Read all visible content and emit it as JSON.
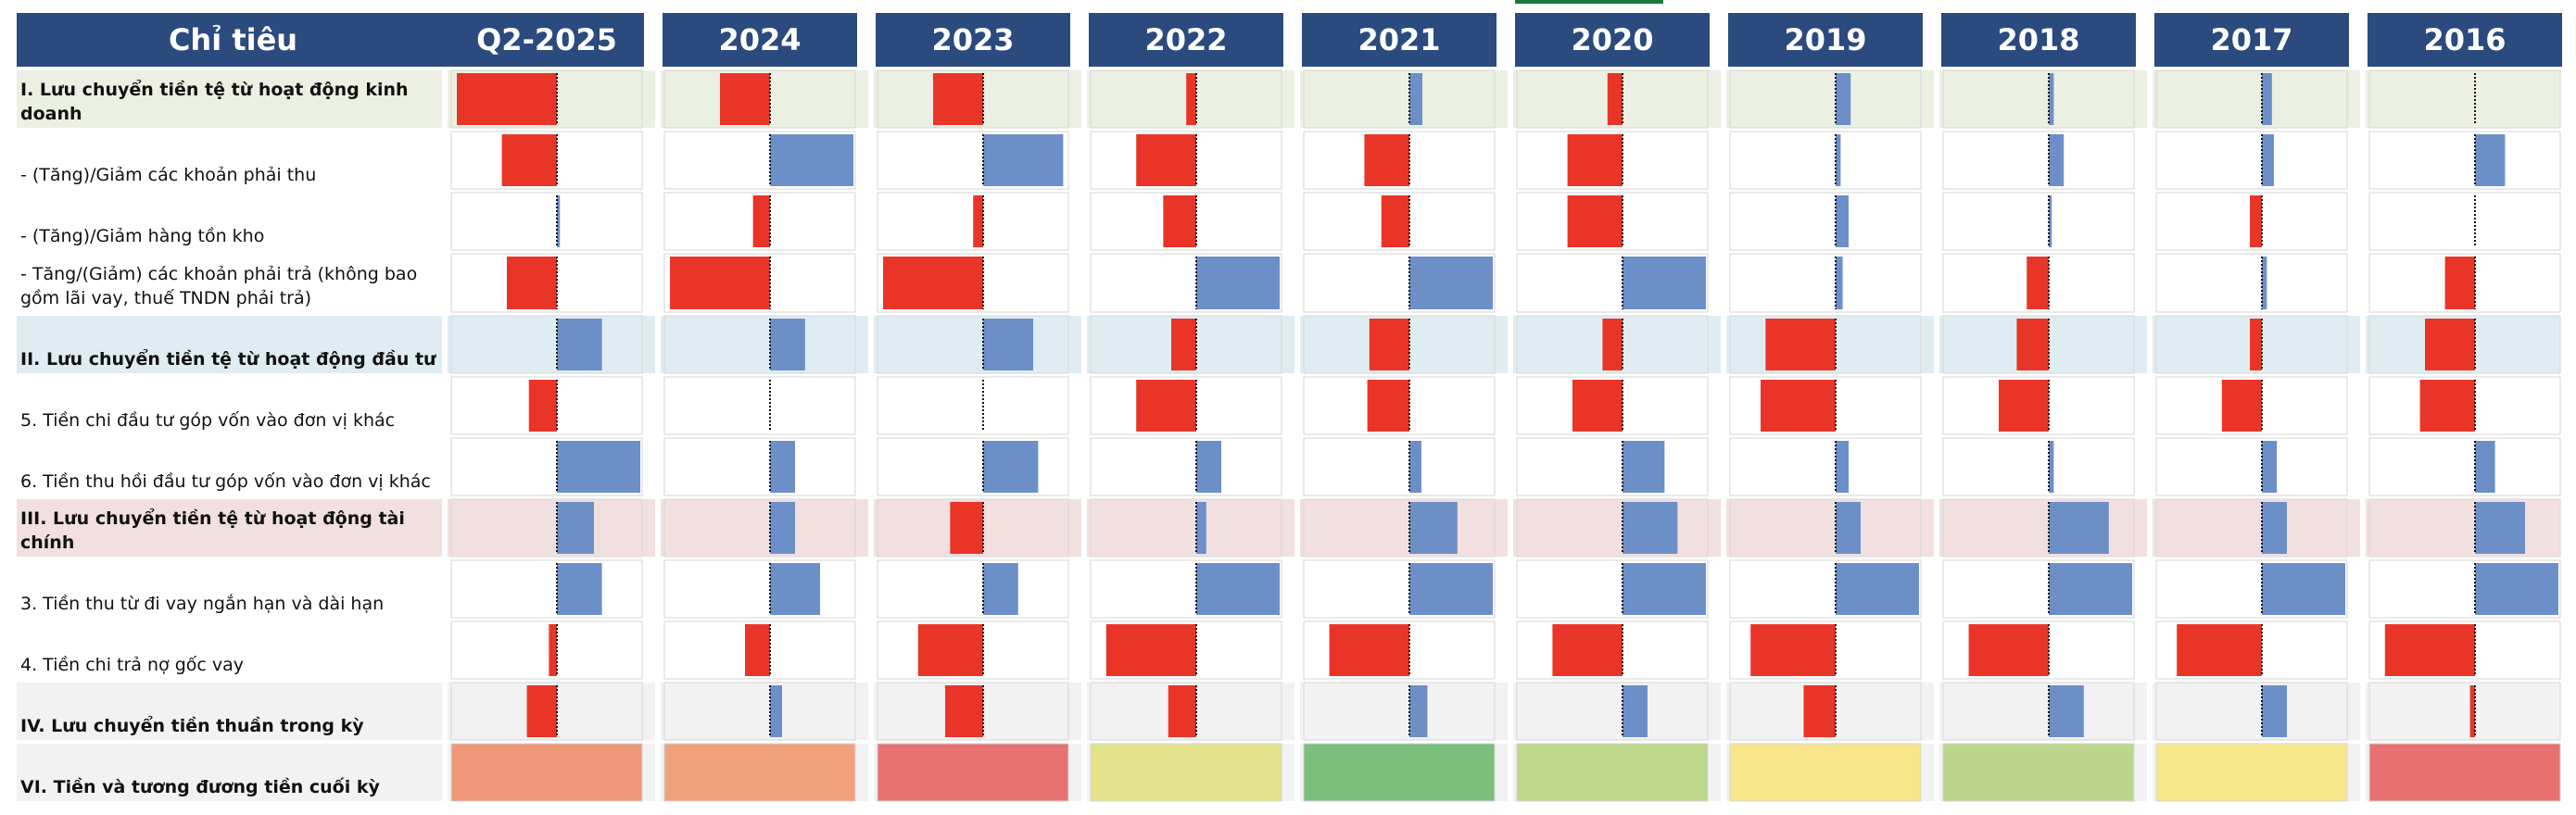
{
  "header": {
    "label_column": "Chỉ tiêu"
  },
  "chart_data": {
    "type": "bar",
    "orientation": "horizontal",
    "years": [
      "Q2-2025",
      "2024",
      "2023",
      "2022",
      "2021",
      "2020",
      "2019",
      "2018",
      "2017",
      "2016"
    ],
    "rows": [
      {
        "label": "I. Lưu chuyển tiền tệ từ hoạt động kinh doanh",
        "kind": "section",
        "band": "#ebf0e2",
        "values": [
          -1.0,
          -0.5,
          -0.5,
          -0.1,
          0.13,
          -0.15,
          0.15,
          0.05,
          0.1,
          0.0
        ]
      },
      {
        "label": "- (Tăng)/Giảm các khoản phải thu",
        "kind": "item",
        "band": "#ffffff",
        "values": [
          -0.55,
          0.9,
          0.8,
          -0.6,
          -0.45,
          -0.55,
          0.05,
          0.15,
          0.12,
          0.3
        ]
      },
      {
        "label": "- (Tăng)/Giảm hàng tồn kho",
        "kind": "item",
        "band": "#ffffff",
        "values": [
          0.03,
          -0.17,
          -0.1,
          -0.33,
          -0.28,
          -0.55,
          0.13,
          0.03,
          -0.12,
          0.0
        ]
      },
      {
        "label": "- Tăng/(Giảm) các khoản phải trả (không bao gồm lãi vay, thuế TNDN phải trả)",
        "kind": "item",
        "band": "#ffffff",
        "values": [
          -0.5,
          -1.0,
          -1.0,
          1.0,
          1.0,
          1.15,
          0.07,
          -0.22,
          0.05,
          -0.3
        ]
      },
      {
        "label": "II. Lưu chuyển tiền tệ từ hoạt động đầu tư",
        "kind": "section",
        "band": "#dfedf2",
        "values": [
          0.45,
          0.35,
          0.5,
          -0.25,
          -0.4,
          -0.2,
          -0.7,
          -0.32,
          -0.12,
          -0.5
        ]
      },
      {
        "label": "5. Tiền chi đầu tư góp vốn vào đơn vị khác",
        "kind": "item",
        "band": "#ffffff",
        "values": [
          -0.28,
          0.0,
          0.0,
          -0.6,
          -0.42,
          -0.5,
          -0.75,
          -0.5,
          -0.4,
          -0.55
        ]
      },
      {
        "label": "6. Tiền thu hồi đầu tư góp vốn vào đơn vị khác",
        "kind": "item",
        "band": "#ffffff",
        "values": [
          0.85,
          0.25,
          0.55,
          0.25,
          0.12,
          0.42,
          0.13,
          0.05,
          0.15,
          0.2
        ]
      },
      {
        "label": "III. Lưu chuyển tiền tệ từ hoạt động tài chính",
        "kind": "section",
        "band": "#f2e0e0",
        "values": [
          0.37,
          0.25,
          -0.33,
          0.1,
          0.48,
          0.55,
          0.25,
          0.6,
          0.25,
          0.5
        ]
      },
      {
        "label": "3. Tiền thu từ đi vay ngắn hạn và dài hạn",
        "kind": "item",
        "band": "#ffffff",
        "values": [
          0.45,
          0.5,
          0.35,
          1.0,
          1.15,
          1.25,
          1.1,
          1.2,
          1.1,
          1.05
        ]
      },
      {
        "label": "4. Tiền chi trả nợ gốc vay",
        "kind": "item",
        "band": "#ffffff",
        "values": [
          -0.08,
          -0.25,
          -0.65,
          -0.9,
          -0.8,
          -0.7,
          -0.85,
          -0.8,
          -0.85,
          -0.9
        ]
      },
      {
        "label": "IV. Lưu chuyển tiền thuần trong kỳ",
        "kind": "section",
        "band": "#f2f2f2",
        "values": [
          -0.3,
          0.12,
          -0.38,
          -0.28,
          0.18,
          0.25,
          -0.32,
          0.35,
          0.25,
          -0.05
        ]
      },
      {
        "label": "VI. Tiền và tương đương tiền cuối kỳ",
        "kind": "section",
        "band": "#f2f2f2",
        "values": [
          null,
          null,
          null,
          null,
          null,
          null,
          null,
          null,
          null,
          null
        ],
        "cell_colors": [
          "#f0987a",
          "#f1a07e",
          "#e87272",
          "#e3e38c",
          "#7bbf7d",
          "#bed88c",
          "#f8e58c",
          "#bad68c",
          "#f8e88c",
          "#e87070"
        ]
      }
    ],
    "colors": {
      "positive": "#6d8fc7",
      "negative": "#e83528",
      "header_bg": "#2b4a7e",
      "header_text": "#ffffff"
    }
  }
}
